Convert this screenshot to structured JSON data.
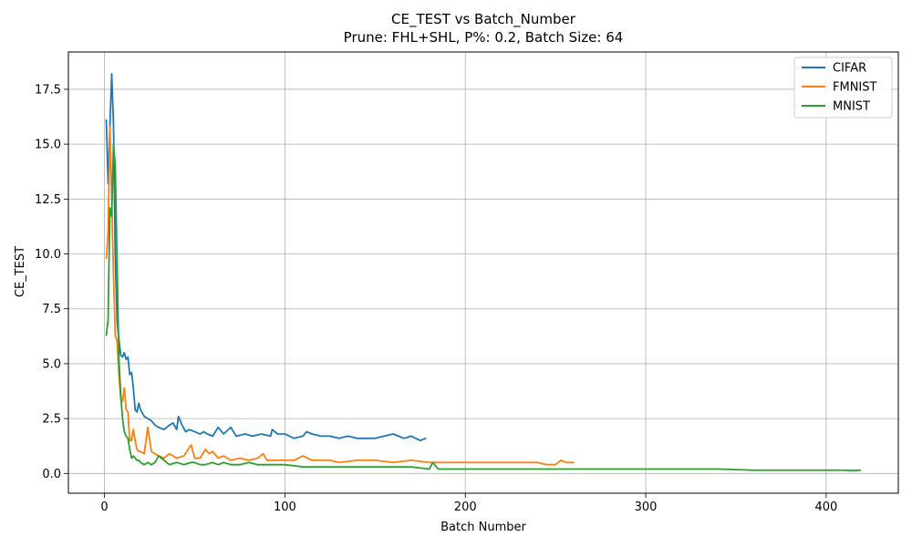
{
  "chart_data": {
    "type": "line",
    "title": "CE_TEST vs Batch_Number",
    "subtitle": "Prune: FHL+SHL, P%: 0.2, Batch Size: 64",
    "xlabel": "Batch Number",
    "ylabel": "CE_TEST",
    "xlim": [
      -20,
      440
    ],
    "ylim": [
      -0.9,
      19.2
    ],
    "xticks": [
      0,
      100,
      200,
      300,
      400
    ],
    "xtick_labels": [
      "0",
      "100",
      "200",
      "300",
      "400"
    ],
    "yticks": [
      0.0,
      2.5,
      5.0,
      7.5,
      10.0,
      12.5,
      15.0,
      17.5
    ],
    "ytick_labels": [
      "0.0",
      "2.5",
      "5.0",
      "7.5",
      "10.0",
      "12.5",
      "15.0",
      "17.5"
    ],
    "grid": true,
    "legend_position": "top-right",
    "series": [
      {
        "name": "CIFAR",
        "color": "#1f77b4",
        "x": [
          1,
          2,
          3,
          4,
          5,
          6,
          7,
          8,
          9,
          10,
          11,
          12,
          13,
          14,
          15,
          16,
          17,
          18,
          19,
          20,
          22,
          24,
          26,
          28,
          30,
          33,
          36,
          38,
          40,
          41,
          43,
          45,
          47,
          50,
          53,
          55,
          57,
          60,
          63,
          66,
          70,
          73,
          78,
          82,
          87,
          92,
          93,
          96,
          100,
          105,
          110,
          112,
          115,
          120,
          125,
          130,
          135,
          140,
          145,
          150,
          155,
          160,
          163,
          166,
          170,
          175,
          178
        ],
        "values": [
          16.1,
          13.2,
          15.8,
          18.2,
          15.9,
          9.8,
          6.9,
          6.1,
          5.4,
          5.3,
          5.5,
          5.2,
          5.3,
          4.5,
          4.6,
          3.9,
          2.9,
          2.8,
          3.2,
          2.9,
          2.6,
          2.5,
          2.4,
          2.2,
          2.1,
          2.0,
          2.2,
          2.3,
          2.0,
          2.6,
          2.2,
          1.9,
          2.0,
          1.9,
          1.8,
          1.9,
          1.8,
          1.7,
          2.1,
          1.8,
          2.1,
          1.7,
          1.8,
          1.7,
          1.8,
          1.7,
          2.0,
          1.8,
          1.8,
          1.6,
          1.7,
          1.9,
          1.8,
          1.7,
          1.7,
          1.6,
          1.7,
          1.6,
          1.6,
          1.6,
          1.7,
          1.8,
          1.7,
          1.6,
          1.7,
          1.5,
          1.6
        ]
      },
      {
        "name": "FMNIST",
        "color": "#ff7f0e",
        "x": [
          1,
          2,
          3,
          4,
          5,
          6,
          7,
          8,
          9,
          10,
          11,
          12,
          13,
          14,
          15,
          16,
          17,
          18,
          19,
          20,
          22,
          24,
          26,
          28,
          30,
          33,
          36,
          40,
          44,
          48,
          50,
          53,
          56,
          58,
          60,
          63,
          66,
          70,
          75,
          80,
          85,
          88,
          90,
          95,
          100,
          105,
          110,
          115,
          120,
          125,
          130,
          140,
          150,
          160,
          170,
          180,
          190,
          200,
          210,
          220,
          230,
          240,
          245,
          250,
          253,
          256,
          260
        ],
        "values": [
          9.8,
          11.0,
          15.8,
          12.5,
          9.0,
          6.3,
          6.0,
          4.5,
          3.4,
          3.3,
          3.9,
          2.9,
          2.8,
          1.5,
          1.5,
          2.0,
          1.5,
          1.1,
          1.0,
          1.0,
          0.9,
          2.1,
          1.0,
          0.9,
          0.8,
          0.7,
          0.9,
          0.7,
          0.8,
          1.3,
          0.7,
          0.7,
          1.1,
          0.9,
          1.0,
          0.7,
          0.8,
          0.6,
          0.7,
          0.6,
          0.7,
          0.9,
          0.6,
          0.6,
          0.6,
          0.6,
          0.8,
          0.6,
          0.6,
          0.6,
          0.5,
          0.6,
          0.6,
          0.5,
          0.6,
          0.5,
          0.5,
          0.5,
          0.5,
          0.5,
          0.5,
          0.5,
          0.4,
          0.4,
          0.6,
          0.5,
          0.5
        ]
      },
      {
        "name": "MNIST",
        "color": "#2ca02c",
        "x": [
          1,
          2,
          3,
          4,
          5,
          6,
          7,
          8,
          9,
          10,
          11,
          12,
          13,
          14,
          15,
          16,
          17,
          18,
          19,
          20,
          22,
          24,
          26,
          28,
          30,
          33,
          36,
          40,
          44,
          48,
          50,
          53,
          56,
          60,
          63,
          66,
          70,
          75,
          80,
          85,
          90,
          95,
          100,
          110,
          120,
          130,
          140,
          150,
          160,
          170,
          180,
          182,
          185,
          190,
          200,
          220,
          240,
          260,
          275,
          280,
          300,
          320,
          340,
          360,
          380,
          400,
          410,
          415,
          419
        ],
        "values": [
          6.3,
          7.0,
          12.1,
          11.7,
          15.0,
          14.0,
          9.5,
          5.2,
          3.6,
          2.5,
          1.9,
          1.7,
          1.6,
          1.1,
          0.7,
          0.8,
          0.7,
          0.6,
          0.6,
          0.5,
          0.4,
          0.5,
          0.4,
          0.5,
          0.8,
          0.6,
          0.4,
          0.5,
          0.4,
          0.5,
          0.5,
          0.4,
          0.4,
          0.5,
          0.4,
          0.5,
          0.4,
          0.4,
          0.5,
          0.4,
          0.4,
          0.4,
          0.4,
          0.3,
          0.3,
          0.3,
          0.3,
          0.3,
          0.3,
          0.3,
          0.2,
          0.5,
          0.2,
          0.2,
          0.2,
          0.2,
          0.2,
          0.2,
          0.2,
          0.2,
          0.2,
          0.2,
          0.2,
          0.15,
          0.15,
          0.15,
          0.15,
          0.13,
          0.15
        ]
      }
    ]
  }
}
